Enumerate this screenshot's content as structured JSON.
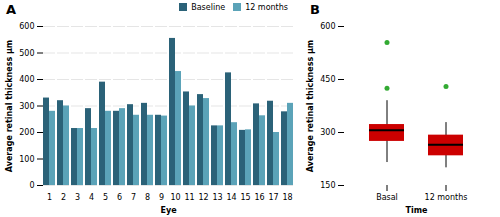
{
  "chart_data": [
    {
      "type": "bar",
      "title": "A",
      "xlabel": "Eye",
      "ylabel": "Average retinal thickness μm",
      "categories": [
        1,
        2,
        3,
        4,
        5,
        6,
        7,
        8,
        9,
        10,
        11,
        12,
        13,
        14,
        15,
        16,
        17,
        18
      ],
      "series": [
        {
          "name": "Baseline",
          "color": "#2b6278",
          "values": [
            330,
            320,
            215,
            290,
            390,
            280,
            305,
            310,
            265,
            555,
            353,
            343,
            225,
            425,
            208,
            308,
            318,
            278
          ]
        },
        {
          "name": "12 months",
          "color": "#5ba3b8",
          "values": [
            280,
            300,
            215,
            215,
            280,
            290,
            265,
            265,
            262,
            430,
            300,
            328,
            225,
            237,
            210,
            263,
            200,
            310
          ]
        }
      ],
      "ylim": [
        0,
        600
      ],
      "yticks": [
        0,
        100,
        200,
        300,
        400,
        500,
        600
      ],
      "grid": true,
      "legend": "upper right"
    },
    {
      "type": "box",
      "title": "B",
      "xlabel": "Time",
      "ylabel": "Average retinal thickness μm",
      "categories": [
        "Basal",
        "12 months"
      ],
      "series": [
        {
          "type": "box",
          "color": "#cc0000",
          "values": [
            [
              330,
              320,
              290,
              390,
              280,
              305,
              310,
              265,
              353,
              343,
              225,
              308,
              318,
              278,
              215,
              215
            ],
            [
              280,
              300,
              215,
              280,
              290,
              265,
              265,
              262,
              300,
              328,
              225,
              237,
              210,
              263,
              200,
              310
            ]
          ]
        },
        {
          "type": "scatter",
          "color": "#33aa33",
          "marker": "circle",
          "values": [
            [
              555,
              425
            ],
            [
              430
            ]
          ]
        }
      ],
      "ylim": [
        150,
        600
      ],
      "yticks": [
        150,
        300,
        450,
        600
      ]
    }
  ]
}
